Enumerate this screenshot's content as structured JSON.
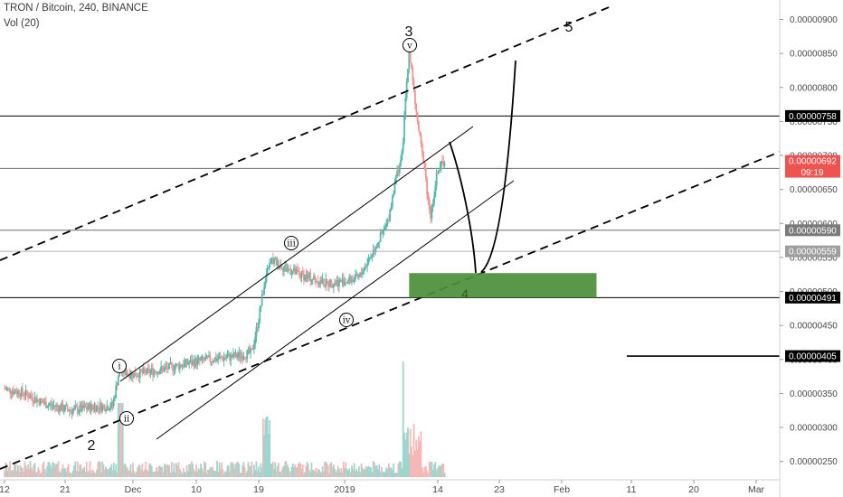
{
  "header": {
    "title": "TRON / Bitcoin, 240, BINANCE",
    "volume_label": "Vol (20)"
  },
  "colors": {
    "up": "#53b9ab",
    "down": "#f09593",
    "vol_up": "#9ed6ce",
    "vol_down": "#f4b9b7",
    "price_tag": "#ef5350",
    "dark_tag": "#000000",
    "gray_tag": "#7a7a7a",
    "light_tag": "#9e9e9e",
    "zone": "#4c8f3a"
  },
  "chart_data": {
    "type": "candlestick",
    "symbol": "TRON / Bitcoin",
    "interval": "240",
    "exchange": "BINANCE",
    "ylim": [
      2.37e-06,
      9.3e-06
    ],
    "y_tick_labels": [
      "0.00000900",
      "0.00000850",
      "0.00000800",
      "0.00000750",
      "0.00000700",
      "0.00000650",
      "0.00000600",
      "0.00000550",
      "0.00000500",
      "0.00000450",
      "0.00000400",
      "0.00000350",
      "0.00000300",
      "0.00000250"
    ],
    "y_tick_values": [
      900,
      850,
      800,
      750,
      700,
      650,
      600,
      550,
      500,
      450,
      400,
      350,
      300,
      250
    ],
    "x_tick_labels": [
      "12",
      "21",
      "Dec",
      "10",
      "19",
      "2019",
      "14",
      "23",
      "Feb",
      "11",
      "20",
      "Mar"
    ],
    "x_tick_dates": [
      "2018-11-12",
      "2018-11-21",
      "2018-12-01",
      "2018-12-10",
      "2018-12-19",
      "2019-01-01",
      "2019-01-14",
      "2019-01-23",
      "2019-02-01",
      "2019-02-11",
      "2019-02-20",
      "2019-03-01"
    ],
    "price_path": [
      [
        "2018-11-12",
        357
      ],
      [
        "2018-11-15",
        350
      ],
      [
        "2018-11-18",
        335
      ],
      [
        "2018-11-20",
        330
      ],
      [
        "2018-11-22",
        325
      ],
      [
        "2018-11-25",
        330
      ],
      [
        "2018-11-28",
        332
      ],
      [
        "2018-11-29",
        385
      ],
      [
        "2018-12-01",
        378
      ],
      [
        "2018-12-05",
        385
      ],
      [
        "2018-12-09",
        395
      ],
      [
        "2018-12-12",
        400
      ],
      [
        "2018-12-16",
        405
      ],
      [
        "2018-12-18",
        410
      ],
      [
        "2018-12-19",
        460
      ],
      [
        "2018-12-20",
        520
      ],
      [
        "2018-12-21",
        545
      ],
      [
        "2018-12-23",
        535
      ],
      [
        "2018-12-25",
        525
      ],
      [
        "2018-12-27",
        520
      ],
      [
        "2018-12-29",
        512
      ],
      [
        "2019-01-01",
        515
      ],
      [
        "2019-01-03",
        520
      ],
      [
        "2019-01-05",
        560
      ],
      [
        "2019-01-07",
        600
      ],
      [
        "2019-01-08",
        660
      ],
      [
        "2019-01-09",
        700
      ],
      [
        "2019-01-10",
        857
      ],
      [
        "2019-01-11",
        760
      ],
      [
        "2019-01-12",
        690
      ],
      [
        "2019-01-13",
        610
      ],
      [
        "2019-01-14",
        680
      ],
      [
        "2019-01-15",
        692
      ]
    ],
    "last_price": "0.00000692",
    "countdown": "09:19",
    "horizontal_levels": [
      {
        "label": "0.00000758",
        "value": 758,
        "style": "dark"
      },
      {
        "label": "0.00000681",
        "value": 681,
        "style": "gray"
      },
      {
        "label": "0.00000590",
        "value": 590,
        "style": "gray"
      },
      {
        "label": "0.00000559",
        "value": 559,
        "style": "light"
      },
      {
        "label": "0.00000491",
        "value": 491,
        "style": "dark"
      },
      {
        "label": "0.00000405",
        "value": 405,
        "style": "dark"
      }
    ],
    "wave_labels": {
      "major": [
        "2",
        "3",
        "4",
        "5"
      ],
      "minor": [
        "i",
        "ii",
        "iii",
        "iv",
        "v"
      ]
    },
    "target_zone": {
      "label": "4",
      "from_date": "2019-01-10",
      "to_date": "2019-02-06",
      "low": 491,
      "high": 527
    }
  }
}
